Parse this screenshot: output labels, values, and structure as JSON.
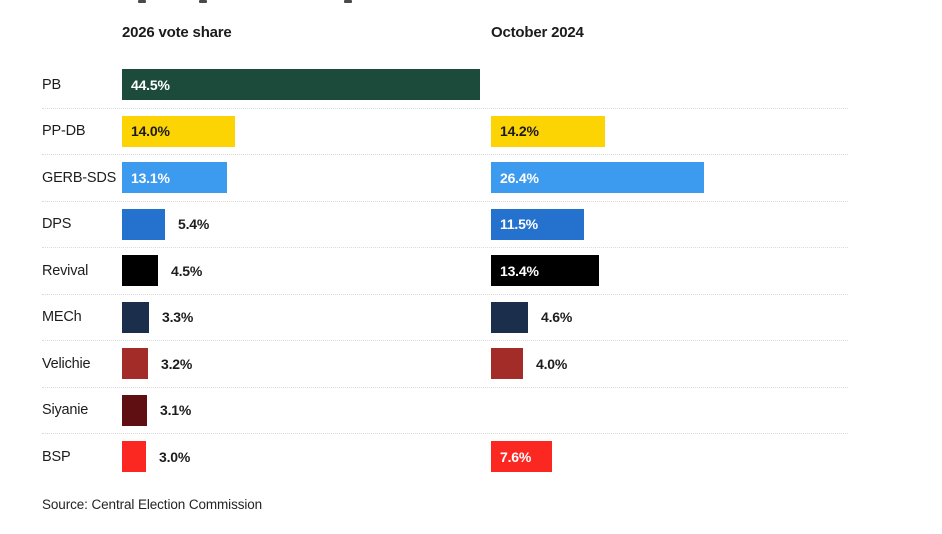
{
  "chart_data": {
    "type": "bar",
    "orientation": "horizontal",
    "categories": [
      "PB",
      "PP-DB",
      "GERB-SDS",
      "DPS",
      "Revival",
      "MECh",
      "Velichie",
      "Siyanie",
      "BSP"
    ],
    "series": [
      {
        "name": "2026 vote share",
        "values": [
          44.5,
          14.0,
          13.1,
          5.4,
          4.5,
          3.3,
          3.2,
          3.1,
          3.0
        ]
      },
      {
        "name": "October 2024",
        "values": [
          null,
          14.2,
          26.4,
          11.5,
          13.4,
          4.6,
          4.0,
          null,
          7.6
        ]
      }
    ],
    "bar_colors": [
      "#1C4B3C",
      "#FCD303",
      "#3D9BEF",
      "#2471CE",
      "#000000",
      "#1B2F4D",
      "#A32B28",
      "#5F0E12",
      "#FB2822"
    ],
    "inside_label_colors": [
      "#ffffff",
      "#1a1a1a",
      "#ffffff",
      "#ffffff",
      "#ffffff",
      "#ffffff",
      "#ffffff",
      "#ffffff",
      "#ffffff"
    ],
    "value_suffix": "%",
    "xlim": [
      0,
      45.8
    ],
    "grid": "dotted-row-separators",
    "legend_position": "column-headers",
    "source": "Source: Central Election Commission"
  }
}
